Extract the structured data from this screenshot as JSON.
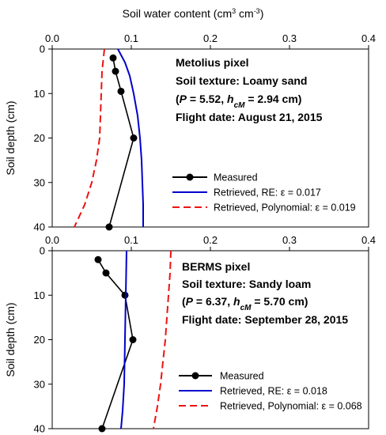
{
  "figure": {
    "x_axis_title": "Soil water content (cm3 cm-3)",
    "x_axis_title_parts": {
      "main": "Soil water content (cm",
      "sup1": "3",
      "mid": " cm",
      "sup2": "-3",
      "end": ")"
    },
    "y_axis_title": "Soil depth (cm)"
  },
  "chart_data": [
    {
      "type": "line",
      "panel": "top",
      "xlim": [
        0.0,
        0.4
      ],
      "ylim": [
        0,
        40
      ],
      "y_inverted": true,
      "x_ticks": [
        "0.0",
        "0.1",
        "0.2",
        "0.3",
        "0.4"
      ],
      "y_ticks": [
        "0",
        "10",
        "20",
        "30",
        "40"
      ],
      "grid": false,
      "annotations": [
        {
          "parts": [
            {
              "t": "Metolius pixel"
            }
          ]
        },
        {
          "parts": [
            {
              "t": "Soil texture: Loamy sand"
            }
          ]
        },
        {
          "parts": [
            {
              "t": "("
            },
            {
              "t": "P",
              "i": true
            },
            {
              "t": " = 5.52, "
            },
            {
              "t": "h",
              "i": true
            },
            {
              "t": "cM",
              "sub": true,
              "i": true
            },
            {
              "t": " = 2.94 cm)"
            }
          ]
        },
        {
          "parts": [
            {
              "t": "Flight date: August 21, 2015"
            }
          ]
        }
      ],
      "legend_position": "lower-right",
      "series": [
        {
          "name": "Measured",
          "style": "black-line-circle-markers",
          "color": "#000000",
          "points": [
            [
              0.077,
              2
            ],
            [
              0.08,
              5
            ],
            [
              0.087,
              9.5
            ],
            [
              0.103,
              20
            ],
            [
              0.072,
              40
            ]
          ]
        },
        {
          "name": "Retrieved, RE: ε = 0.017",
          "style": "solid",
          "color": "#0000cc",
          "points": [
            [
              0.083,
              0
            ],
            [
              0.092,
              3
            ],
            [
              0.098,
              6
            ],
            [
              0.103,
              10
            ],
            [
              0.108,
              15
            ],
            [
              0.111,
              20
            ],
            [
              0.113,
              25
            ],
            [
              0.114,
              30
            ],
            [
              0.115,
              35
            ],
            [
              0.115,
              40
            ]
          ]
        },
        {
          "name": "Retrieved, Polynomial: ε = 0.019",
          "style": "dashed",
          "color": "#ee1111",
          "points": [
            [
              0.066,
              0
            ],
            [
              0.063,
              5
            ],
            [
              0.062,
              10
            ],
            [
              0.061,
              15
            ],
            [
              0.06,
              20
            ],
            [
              0.056,
              25
            ],
            [
              0.05,
              30
            ],
            [
              0.041,
              35
            ],
            [
              0.028,
              40
            ]
          ]
        }
      ]
    },
    {
      "type": "line",
      "panel": "bottom",
      "xlim": [
        0.0,
        0.4
      ],
      "ylim": [
        0,
        40
      ],
      "y_inverted": true,
      "x_ticks": [
        "0.0",
        "0.1",
        "0.2",
        "0.3",
        "0.4"
      ],
      "y_ticks": [
        "0",
        "10",
        "20",
        "30",
        "40"
      ],
      "grid": false,
      "annotations": [
        {
          "parts": [
            {
              "t": "BERMS pixel"
            }
          ]
        },
        {
          "parts": [
            {
              "t": "Soil texture: Sandy loam"
            }
          ]
        },
        {
          "parts": [
            {
              "t": "("
            },
            {
              "t": "P",
              "i": true
            },
            {
              "t": " = 6.37, "
            },
            {
              "t": "h",
              "i": true
            },
            {
              "t": "cM",
              "sub": true,
              "i": true
            },
            {
              "t": " = 5.70 cm)"
            }
          ]
        },
        {
          "parts": [
            {
              "t": "Flight date: September 28, 2015"
            }
          ]
        }
      ],
      "legend_position": "lower-right",
      "series": [
        {
          "name": "Measured",
          "style": "black-line-circle-markers",
          "color": "#000000",
          "points": [
            [
              0.058,
              2
            ],
            [
              0.068,
              5
            ],
            [
              0.092,
              10
            ],
            [
              0.102,
              20
            ],
            [
              0.063,
              40
            ]
          ]
        },
        {
          "name": "Retrieved, RE: ε = 0.018",
          "style": "solid",
          "color": "#0000cc",
          "points": [
            [
              0.094,
              0
            ],
            [
              0.093,
              10
            ],
            [
              0.092,
              20
            ],
            [
              0.091,
              30
            ],
            [
              0.089,
              36
            ],
            [
              0.087,
              40
            ]
          ]
        },
        {
          "name": "Retrieved, Polynomial: ε = 0.068",
          "style": "dashed",
          "color": "#ee1111",
          "points": [
            [
              0.15,
              0
            ],
            [
              0.149,
              5
            ],
            [
              0.147,
              10
            ],
            [
              0.145,
              15
            ],
            [
              0.143,
              20
            ],
            [
              0.14,
              25
            ],
            [
              0.137,
              30
            ],
            [
              0.133,
              35
            ],
            [
              0.128,
              40
            ]
          ]
        }
      ]
    }
  ]
}
